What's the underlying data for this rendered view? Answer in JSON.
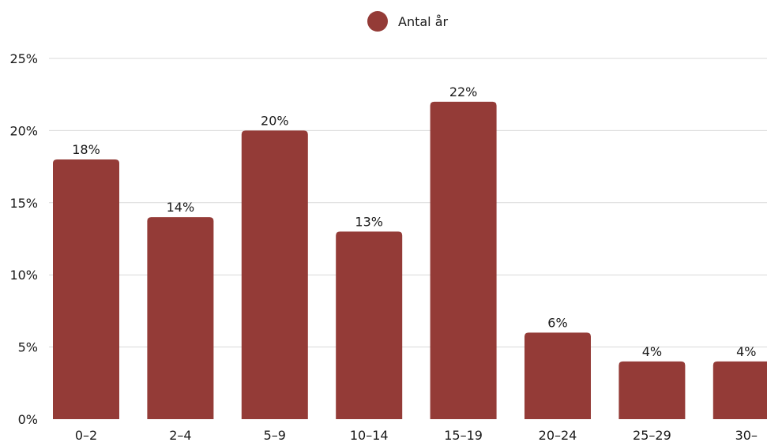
{
  "chart_data": {
    "type": "bar",
    "categories": [
      "0–2",
      "2–4",
      "5–9",
      "10–14",
      "15–19",
      "20–24",
      "25–29",
      "30–"
    ],
    "series": [
      {
        "name": "Antal år",
        "values": [
          18,
          14,
          20,
          13,
          22,
          6,
          4,
          4
        ],
        "labels": [
          "18%",
          "14%",
          "20%",
          "13%",
          "22%",
          "6%",
          "4%",
          "4%"
        ]
      }
    ],
    "y_ticks": [
      0,
      5,
      10,
      15,
      20,
      25
    ],
    "y_tick_labels": [
      "0%",
      "5%",
      "10%",
      "15%",
      "20%",
      "25%"
    ],
    "ylim": [
      0,
      25
    ],
    "grid": true,
    "legend_position": "top-center",
    "bar_color": "#943b37"
  }
}
